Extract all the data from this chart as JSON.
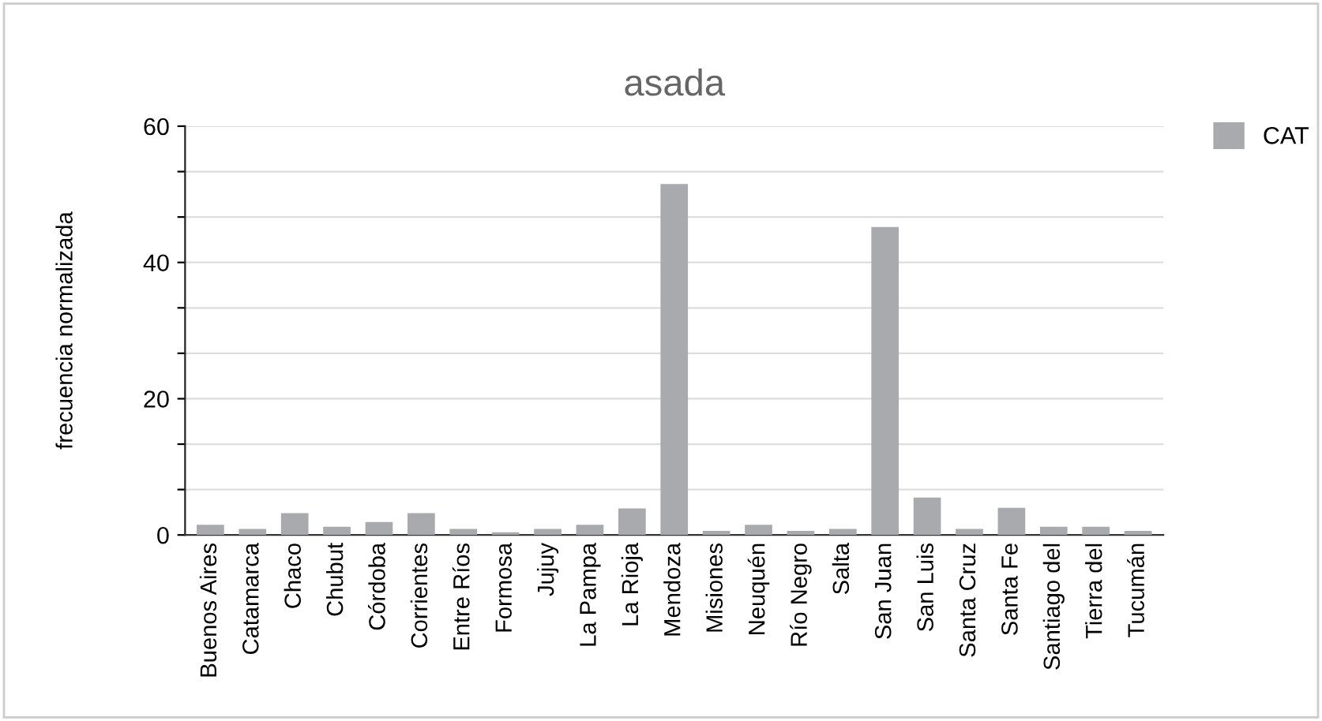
{
  "chart_data": {
    "type": "bar",
    "title": "asada",
    "ylabel": "frecuencia normalizada",
    "categories": [
      "Buenos Aires",
      "Catamarca",
      "Chaco",
      "Chubut",
      "Córdoba",
      "Corrientes",
      "Entre Ríos",
      "Formosa",
      "Jujuy",
      "La Pampa",
      "La Rioja",
      "Mendoza",
      "Misiones",
      "Neuquén",
      "Río Negro",
      "Salta",
      "San Juan",
      "San Luis",
      "Santa Cruz",
      "Santa Fe",
      "Santiago del",
      "Tierra del",
      "Tucumán"
    ],
    "series": [
      {
        "name": "CAT",
        "color": "#a9aaad",
        "values": [
          1.5,
          0.9,
          3.2,
          1.2,
          1.9,
          3.2,
          0.9,
          0.4,
          0.9,
          1.5,
          3.9,
          51.5,
          0.6,
          1.5,
          0.6,
          0.9,
          45.2,
          5.5,
          0.9,
          4.0,
          1.2,
          1.2,
          0.6
        ]
      }
    ],
    "ylim": [
      0,
      60
    ],
    "yticks": [
      0,
      {
        "value": 6.667,
        "label": null
      },
      {
        "value": 13.333,
        "label": null
      },
      20,
      {
        "value": 26.667,
        "label": null
      },
      {
        "value": 33.333,
        "label": null
      },
      40,
      {
        "value": 46.667,
        "label": null
      },
      {
        "value": 53.333,
        "label": null
      },
      60
    ],
    "grid": "y",
    "legend": "top right"
  }
}
